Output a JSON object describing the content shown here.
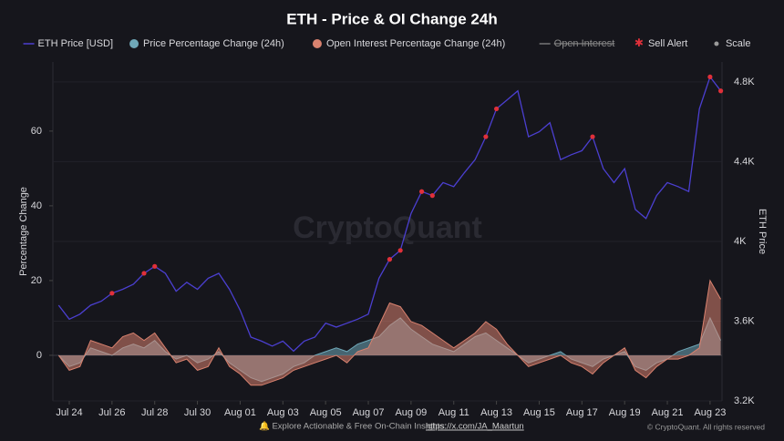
{
  "chart_data": {
    "type": "combo",
    "title": "ETH - Price & OI Change 24h",
    "watermark": "CryptoQuant",
    "ylabel": "Percentage Change",
    "y2label": "ETH Price",
    "ylim": [
      -12.2,
      78.5
    ],
    "yticks": [
      0,
      20,
      40,
      60
    ],
    "y2lim": [
      3200,
      4900
    ],
    "y2ticks": [
      {
        "value": 3200,
        "label": "3.2K"
      },
      {
        "value": 3600,
        "label": "3.6K"
      },
      {
        "value": 4000,
        "label": "4K"
      },
      {
        "value": 4400,
        "label": "4.4K"
      },
      {
        "value": 4800,
        "label": "4.8K"
      }
    ],
    "grid": true,
    "categories": [
      null,
      "Jul 24",
      null,
      null,
      null,
      "Jul 26",
      null,
      null,
      null,
      "Jul 28",
      null,
      null,
      null,
      "Jul 30",
      null,
      null,
      null,
      "Aug 01",
      null,
      null,
      null,
      "Aug 03",
      null,
      null,
      null,
      "Aug 05",
      null,
      null,
      null,
      "Aug 07",
      null,
      null,
      null,
      "Aug 09",
      null,
      null,
      null,
      "Aug 11",
      null,
      null,
      null,
      "Aug 13",
      null,
      null,
      null,
      "Aug 15",
      null,
      null,
      null,
      "Aug 17",
      null,
      null,
      null,
      "Aug 19",
      null,
      null,
      null,
      "Aug 21",
      null,
      null,
      null,
      "Aug 23",
      null
    ],
    "series": [
      {
        "name": "ETH Price [USD]",
        "color": "#4b3fd0",
        "marker": "line",
        "axis": "y2",
        "kind": "line",
        "values": [
          3680,
          3610,
          3635,
          3680,
          3700,
          3740,
          3760,
          3785,
          3840,
          3875,
          3840,
          3750,
          3795,
          3760,
          3815,
          3840,
          3760,
          3655,
          3520,
          3500,
          3475,
          3500,
          3450,
          3500,
          3520,
          3590,
          3570,
          3590,
          3610,
          3635,
          3815,
          3910,
          3955,
          4140,
          4250,
          4230,
          4295,
          4275,
          4345,
          4410,
          4525,
          4665,
          4710,
          4755,
          4525,
          4550,
          4595,
          4410,
          4435,
          4455,
          4525,
          4365,
          4295,
          4365,
          4160,
          4115,
          4230,
          4295,
          4275,
          4250,
          4665,
          4825,
          4755
        ]
      },
      {
        "name": "Price Percentage Change (24h)",
        "color": "#6fa8b8",
        "marker": "dot",
        "kind": "area",
        "values": [
          0,
          -3,
          -2,
          2,
          1,
          0,
          2,
          3,
          2,
          4,
          1,
          -1,
          0,
          -2,
          -1,
          1,
          -2,
          -4,
          -6,
          -7,
          -6,
          -5,
          -3,
          -2,
          0,
          1,
          2,
          1,
          3,
          4,
          5,
          8,
          10,
          7,
          5,
          3,
          2,
          1,
          3,
          5,
          6,
          4,
          2,
          0,
          -2,
          -1,
          0,
          1,
          -1,
          -2,
          -3,
          -1,
          0,
          1,
          -3,
          -4,
          -2,
          -1,
          1,
          2,
          3,
          10,
          4
        ]
      },
      {
        "name": "Open Interest Percentage Change (24h)",
        "color": "#d9826f",
        "marker": "dot",
        "kind": "area",
        "values": [
          0,
          -4,
          -3,
          4,
          3,
          2,
          5,
          6,
          4,
          6,
          2,
          -2,
          -1,
          -4,
          -3,
          2,
          -3,
          -5,
          -8,
          -8,
          -7,
          -6,
          -4,
          -3,
          -2,
          -1,
          0,
          -2,
          1,
          2,
          8,
          14,
          13,
          9,
          8,
          6,
          4,
          2,
          4,
          6,
          9,
          7,
          3,
          0,
          -3,
          -2,
          -1,
          0,
          -2,
          -3,
          -5,
          -2,
          0,
          2,
          -4,
          -6,
          -3,
          -1,
          -1,
          0,
          2,
          20,
          15
        ]
      },
      {
        "name": "Open Interest",
        "color": "#888888",
        "marker": "line",
        "hidden": true
      },
      {
        "name": "Sell Alert",
        "color": "#e0303a",
        "marker": "star",
        "axis": "y2",
        "kind": "points",
        "values": [
          null,
          null,
          null,
          null,
          null,
          3740,
          null,
          null,
          3840,
          3875,
          null,
          null,
          null,
          null,
          null,
          null,
          null,
          null,
          null,
          null,
          null,
          null,
          null,
          null,
          null,
          null,
          null,
          null,
          null,
          null,
          null,
          3910,
          3955,
          null,
          4250,
          4230,
          null,
          null,
          null,
          null,
          4525,
          4665,
          null,
          null,
          null,
          null,
          null,
          null,
          null,
          null,
          4525,
          null,
          null,
          null,
          null,
          null,
          null,
          null,
          null,
          null,
          null,
          4825,
          4755
        ]
      },
      {
        "name": "Scale",
        "color": "#9a9a9a",
        "marker": "dot"
      }
    ],
    "footer": {
      "text": "🔔 Explore Actionable & Free On-Chain Insights: ",
      "link": "https://x.com/JA_Maartun",
      "copyright": "© CryptoQuant. All rights reserved"
    }
  }
}
